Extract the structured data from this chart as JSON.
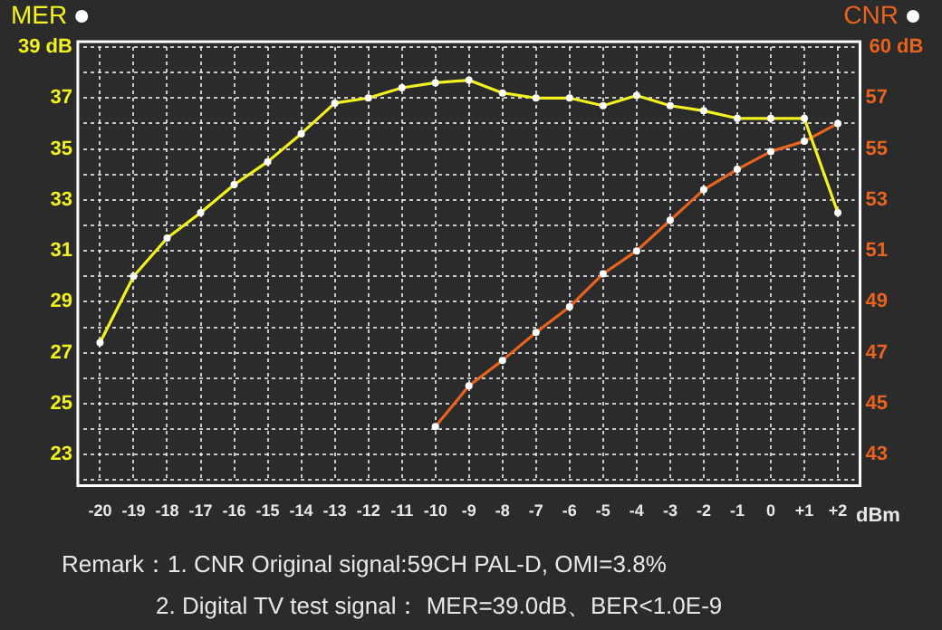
{
  "chart_data": {
    "type": "line",
    "categories": [
      "-20",
      "-19",
      "-18",
      "-17",
      "-16",
      "-15",
      "-14",
      "-13",
      "-12",
      "-11",
      "-10",
      "-9",
      "-8",
      "-7",
      "-6",
      "-5",
      "-4",
      "-3",
      "-2",
      "-1",
      "0",
      "+1",
      "+2"
    ],
    "xlabel": "dBm",
    "series": [
      {
        "name": "MER",
        "color": "#f2f21e",
        "values": [
          27.4,
          30.0,
          31.5,
          32.5,
          33.6,
          34.5,
          35.6,
          36.8,
          37.0,
          37.4,
          37.6,
          37.7,
          37.2,
          37.0,
          37.0,
          36.7,
          37.1,
          36.7,
          36.5,
          36.2,
          36.2,
          36.2,
          32.5
        ]
      },
      {
        "name": "CNR",
        "color": "#e8641e",
        "axis": "y2",
        "values": [
          null,
          null,
          null,
          null,
          null,
          null,
          null,
          null,
          null,
          null,
          44.1,
          45.7,
          46.7,
          47.8,
          48.8,
          50.1,
          51.0,
          52.2,
          53.4,
          54.2,
          54.9,
          55.3,
          56.0
        ]
      }
    ],
    "ylim": [
      22,
      39
    ],
    "yticks": [
      {
        "value": 22,
        "label": null
      },
      23,
      {
        "value": 24,
        "label": null
      },
      25,
      {
        "value": 26,
        "label": null
      },
      27,
      {
        "value": 28,
        "label": null
      },
      29,
      {
        "value": 30,
        "label": null
      },
      31,
      {
        "value": 32,
        "label": null
      },
      33,
      {
        "value": 34,
        "label": null
      },
      35,
      {
        "value": 36,
        "label": null
      },
      37,
      {
        "value": 38,
        "label": null
      },
      {
        "value": 39,
        "label": "39 dB"
      }
    ],
    "y2lim": [
      42,
      59
    ],
    "y2ticks": [
      43,
      45,
      47,
      49,
      51,
      53,
      55,
      57
    ],
    "y2label": "60 dB",
    "grid": true,
    "legend": "top",
    "marker": "circle",
    "line_style": "solid",
    "annotations": [
      "Remark：1. CNR Original signal:59CH  PAL-D, OMI=3.8%",
      "2. Digital TV test signal：  MER=39.0dB、BER<1.0E-9"
    ]
  }
}
